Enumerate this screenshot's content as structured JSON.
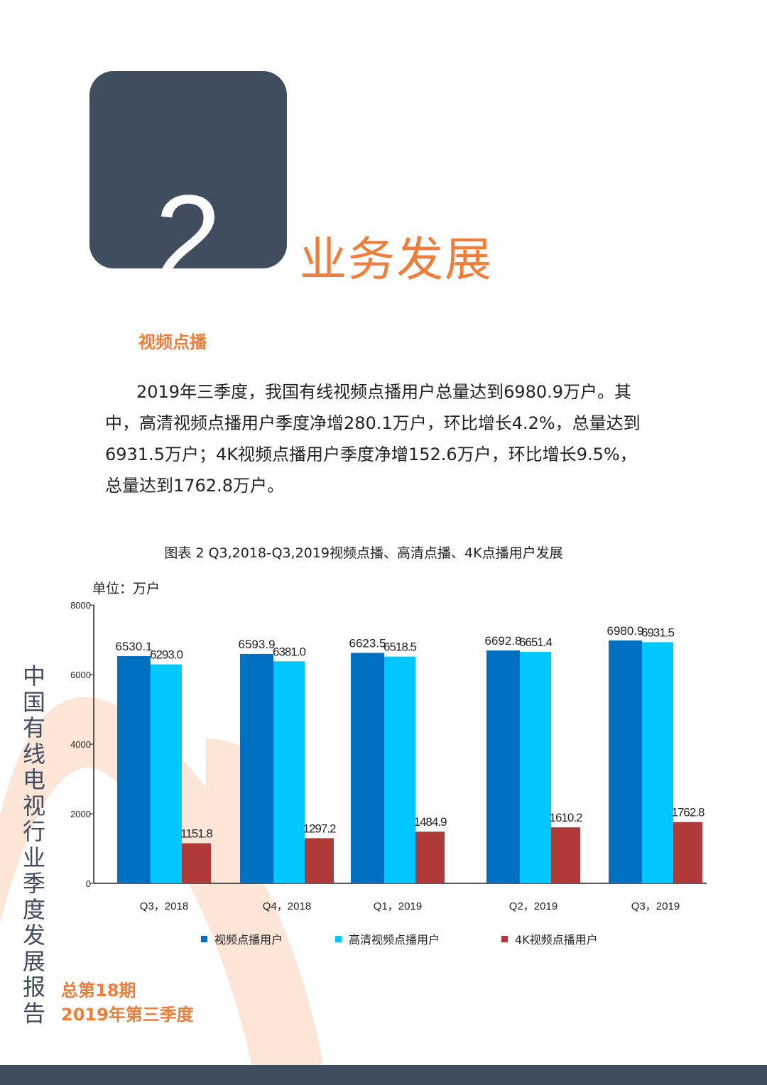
{
  "colors": {
    "dark": "#3f4d5e",
    "orange": "#f07d3a",
    "series1": "#0070c0",
    "series2": "#00c8ff",
    "series3": "#b03a3a",
    "decor": "#fbd9c8"
  },
  "header": {
    "section_number": "2",
    "section_title": "业务发展"
  },
  "subsection": {
    "title": "视频点播"
  },
  "body_text": "2019年三季度，我国有线视频点播用户总量达到6980.9万户。其中，高清视频点播用户季度净增280.1万户，环比增长4.2%，总量达到6931.5万户；4K视频点播用户季度净增152.6万户，环比增长9.5%，总量达到1762.8万户。",
  "chart_caption": "图表 2 Q3,2018-Q3,2019视频点播、高清点播、4K点播用户发展",
  "unit_label": "单位：万户",
  "chart_data": {
    "type": "bar",
    "title": "图表 2 Q3,2018-Q3,2019视频点播、高清点播、4K点播用户发展",
    "categories": [
      "Q3，2018",
      "Q4，2018",
      "Q1，2019",
      "Q2，2019",
      "Q3，2019"
    ],
    "series": [
      {
        "name": "视频点播用户",
        "values": [
          6530.1,
          6593.9,
          6623.5,
          6692.8,
          6980.9
        ],
        "labels": [
          "6530.1",
          "6593.9",
          "6623.5",
          "6692.8",
          "6980.9"
        ]
      },
      {
        "name": "高清视频点播用户",
        "values": [
          6293.0,
          6381.0,
          6518.5,
          6651.4,
          6931.5
        ],
        "labels": [
          "6293.0",
          "6381.0",
          "6518.5",
          "6651.4",
          "6931.5"
        ]
      },
      {
        "name": "4K视频点播用户",
        "values": [
          1151.8,
          1297.2,
          1484.9,
          1610.2,
          1762.8
        ],
        "labels": [
          "1151.8",
          "1297.2",
          "1484.9",
          "1610.2",
          "1762.8"
        ]
      }
    ],
    "yticks": [
      "0",
      "2000",
      "4000",
      "6000",
      "8000"
    ],
    "ylim": [
      0,
      8000
    ],
    "ylabel": "单位：万户",
    "legend_position": "bottom",
    "grid": false
  },
  "side_title": "中国有线电视行业季度发展报告",
  "issue": {
    "number": "总第18期",
    "period": "2019年第三季度"
  }
}
